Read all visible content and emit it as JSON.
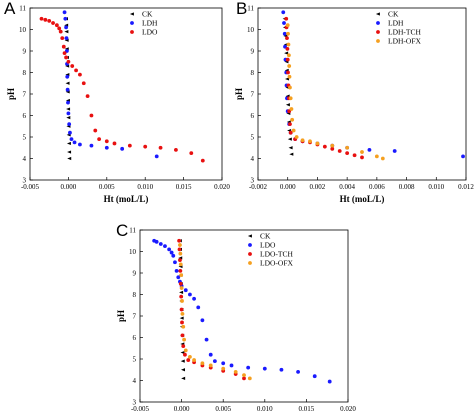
{
  "chart_data": [
    {
      "type": "scatter",
      "panel_label": "A",
      "xlabel": "Ht (moL/L)",
      "ylabel": "pH",
      "xlim": [
        -0.005,
        0.02
      ],
      "ylim": [
        3,
        11
      ],
      "xticks": [
        "-0.005",
        "0.000",
        "0.005",
        "0.010",
        "0.015",
        "0.020"
      ],
      "yticks": [
        "3",
        "4",
        "5",
        "6",
        "7",
        "8",
        "9",
        "10",
        "11"
      ],
      "legend_position": "top-right",
      "series": [
        {
          "name": "CK",
          "color": "#000000",
          "points": [
            [
              -0.0003,
              10.5
            ],
            [
              -0.00028,
              10.2
            ],
            [
              -0.00025,
              9.9
            ],
            [
              -0.00022,
              9.5
            ],
            [
              -0.0002,
              9.1
            ],
            [
              -0.00018,
              8.7
            ],
            [
              -0.00015,
              8.3
            ],
            [
              -0.00012,
              7.9
            ],
            [
              -0.0001,
              7.5
            ],
            [
              -8e-05,
              7.1
            ],
            [
              -5e-05,
              6.7
            ],
            [
              -3e-05,
              6.3
            ],
            [
              0.0,
              5.9
            ],
            [
              2e-05,
              5.5
            ],
            [
              5e-05,
              5.1
            ],
            [
              8e-05,
              4.7
            ],
            [
              0.0001,
              4.3
            ],
            [
              0.00012,
              4.0
            ]
          ]
        },
        {
          "name": "LDH",
          "color": "#1a1aff",
          "points": [
            [
              -0.0005,
              10.8
            ],
            [
              -0.0004,
              10.5
            ],
            [
              -0.0003,
              10.1
            ],
            [
              -0.00025,
              9.6
            ],
            [
              -0.0002,
              9.0
            ],
            [
              -0.00018,
              8.4
            ],
            [
              -0.00015,
              7.8
            ],
            [
              -0.0001,
              7.2
            ],
            [
              -5e-05,
              6.6
            ],
            [
              0.0,
              6.1
            ],
            [
              0.0001,
              5.6
            ],
            [
              0.0002,
              5.2
            ],
            [
              0.0004,
              4.9
            ],
            [
              0.0008,
              4.75
            ],
            [
              0.0015,
              4.65
            ],
            [
              0.003,
              4.6
            ],
            [
              0.005,
              4.5
            ],
            [
              0.007,
              4.45
            ],
            [
              0.0115,
              4.1
            ]
          ]
        },
        {
          "name": "LDO",
          "color": "#e81010",
          "points": [
            [
              -0.0035,
              10.5
            ],
            [
              -0.003,
              10.45
            ],
            [
              -0.0025,
              10.4
            ],
            [
              -0.002,
              10.3
            ],
            [
              -0.0015,
              10.2
            ],
            [
              -0.0012,
              10.05
            ],
            [
              -0.001,
              9.9
            ],
            [
              -0.0008,
              9.6
            ],
            [
              -0.0006,
              9.2
            ],
            [
              -0.0005,
              8.9
            ],
            [
              -0.0003,
              8.7
            ],
            [
              0.0,
              8.5
            ],
            [
              0.0005,
              8.3
            ],
            [
              0.001,
              8.1
            ],
            [
              0.0015,
              7.9
            ],
            [
              0.002,
              7.5
            ],
            [
              0.0025,
              6.9
            ],
            [
              0.003,
              6.0
            ],
            [
              0.0035,
              5.3
            ],
            [
              0.004,
              4.9
            ],
            [
              0.005,
              4.8
            ],
            [
              0.006,
              4.7
            ],
            [
              0.008,
              4.6
            ],
            [
              0.01,
              4.55
            ],
            [
              0.012,
              4.5
            ],
            [
              0.014,
              4.4
            ],
            [
              0.016,
              4.25
            ],
            [
              0.0175,
              3.9
            ]
          ]
        }
      ]
    },
    {
      "type": "scatter",
      "panel_label": "B",
      "xlabel": "Ht (moL/L)",
      "ylabel": "pH",
      "xlim": [
        -0.002,
        0.012
      ],
      "ylim": [
        3,
        11
      ],
      "xticks": [
        "-0.002",
        "0.000",
        "0.002",
        "0.004",
        "0.006",
        "0.008",
        "0.010",
        "0.012"
      ],
      "yticks": [
        "3",
        "4",
        "5",
        "6",
        "7",
        "8",
        "9",
        "10",
        "11"
      ],
      "legend_position": "top-right",
      "series": [
        {
          "name": "CK",
          "color": "#000000",
          "points": [
            [
              -0.0002,
              10.5
            ],
            [
              -0.00018,
              10.1
            ],
            [
              -0.00015,
              9.7
            ],
            [
              -0.00012,
              9.3
            ],
            [
              -0.0001,
              8.9
            ],
            [
              -8e-05,
              8.5
            ],
            [
              -6e-05,
              8.1
            ],
            [
              -4e-05,
              7.7
            ],
            [
              -2e-05,
              7.3
            ],
            [
              0.0,
              6.9
            ],
            [
              2e-05,
              6.5
            ],
            [
              5e-05,
              6.1
            ],
            [
              8e-05,
              5.7
            ],
            [
              0.0001,
              5.3
            ],
            [
              0.00015,
              4.9
            ],
            [
              0.0002,
              4.5
            ],
            [
              0.00025,
              4.2
            ]
          ]
        },
        {
          "name": "LDH",
          "color": "#1a1aff",
          "points": [
            [
              -0.0003,
              10.8
            ],
            [
              -0.00025,
              10.3
            ],
            [
              -0.0002,
              9.8
            ],
            [
              -0.00018,
              9.2
            ],
            [
              -0.00015,
              8.6
            ],
            [
              -0.0001,
              8.0
            ],
            [
              -8e-05,
              7.4
            ],
            [
              -5e-05,
              6.8
            ],
            [
              0.0,
              6.2
            ],
            [
              0.0001,
              5.6
            ],
            [
              0.0002,
              5.2
            ],
            [
              0.0005,
              4.9
            ],
            [
              0.001,
              4.8
            ],
            [
              0.002,
              4.7
            ],
            [
              0.003,
              4.6
            ],
            [
              0.004,
              4.5
            ],
            [
              0.0055,
              4.4
            ],
            [
              0.0072,
              4.35
            ],
            [
              0.0118,
              4.1
            ]
          ]
        },
        {
          "name": "LDH-TCH",
          "color": "#e81010",
          "points": [
            [
              -0.0001,
              10.5
            ],
            [
              -8e-05,
              10.1
            ],
            [
              -5e-05,
              9.6
            ],
            [
              -2e-05,
              9.1
            ],
            [
              0.0,
              8.6
            ],
            [
              2e-05,
              8.0
            ],
            [
              5e-05,
              7.4
            ],
            [
              8e-05,
              6.8
            ],
            [
              0.0001,
              6.2
            ],
            [
              0.00015,
              5.6
            ],
            [
              0.0002,
              5.2
            ],
            [
              0.0005,
              4.9
            ],
            [
              0.001,
              4.8
            ],
            [
              0.0015,
              4.75
            ],
            [
              0.002,
              4.65
            ],
            [
              0.0025,
              4.55
            ],
            [
              0.003,
              4.45
            ],
            [
              0.0035,
              4.35
            ],
            [
              0.004,
              4.25
            ],
            [
              0.0045,
              4.15
            ],
            [
              0.005,
              4.05
            ]
          ]
        },
        {
          "name": "LDH-OFX",
          "color": "#f5a020",
          "points": [
            [
              0.0,
              10.2
            ],
            [
              2e-05,
              9.8
            ],
            [
              5e-05,
              9.3
            ],
            [
              8e-05,
              8.8
            ],
            [
              0.0001,
              8.3
            ],
            [
              0.00012,
              7.8
            ],
            [
              0.00015,
              7.3
            ],
            [
              0.0002,
              6.8
            ],
            [
              0.00025,
              6.3
            ],
            [
              0.0003,
              5.8
            ],
            [
              0.0004,
              5.3
            ],
            [
              0.0006,
              5.0
            ],
            [
              0.001,
              4.85
            ],
            [
              0.0015,
              4.8
            ],
            [
              0.002,
              4.7
            ],
            [
              0.003,
              4.6
            ],
            [
              0.004,
              4.5
            ],
            [
              0.005,
              4.3
            ],
            [
              0.006,
              4.1
            ],
            [
              0.0064,
              4.0
            ]
          ]
        }
      ]
    },
    {
      "type": "scatter",
      "panel_label": "C",
      "xlabel": "Ht (moL/L)",
      "ylabel": "pH",
      "xlim": [
        -0.005,
        0.02
      ],
      "ylim": [
        3,
        11
      ],
      "xticks": [
        "-0.005",
        "0.000",
        "0.005",
        "0.010",
        "0.015",
        "0.020"
      ],
      "yticks": [
        "3",
        "4",
        "5",
        "6",
        "7",
        "8",
        "9",
        "10",
        "11"
      ],
      "legend_position": "top-right",
      "series": [
        {
          "name": "CK",
          "color": "#000000",
          "points": [
            [
              -0.0002,
              10.5
            ],
            [
              -0.00018,
              10.1
            ],
            [
              -0.00015,
              9.7
            ],
            [
              -0.00012,
              9.3
            ],
            [
              -0.0001,
              8.9
            ],
            [
              -8e-05,
              8.5
            ],
            [
              -5e-05,
              8.1
            ],
            [
              -2e-05,
              7.7
            ],
            [
              0.0,
              7.3
            ],
            [
              2e-05,
              6.9
            ],
            [
              5e-05,
              6.5
            ],
            [
              8e-05,
              6.1
            ],
            [
              0.0001,
              5.7
            ],
            [
              0.00012,
              5.3
            ],
            [
              0.00015,
              4.9
            ],
            [
              0.00018,
              4.5
            ],
            [
              0.0002,
              4.1
            ]
          ]
        },
        {
          "name": "LDO",
          "color": "#1a1aff",
          "points": [
            [
              -0.0033,
              10.5
            ],
            [
              -0.003,
              10.45
            ],
            [
              -0.0025,
              10.35
            ],
            [
              -0.002,
              10.25
            ],
            [
              -0.0015,
              10.1
            ],
            [
              -0.0012,
              9.95
            ],
            [
              -0.001,
              9.8
            ],
            [
              -0.0008,
              9.5
            ],
            [
              -0.0006,
              9.1
            ],
            [
              -0.0004,
              8.8
            ],
            [
              -0.0002,
              8.6
            ],
            [
              0.0,
              8.4
            ],
            [
              0.0005,
              8.2
            ],
            [
              0.001,
              8.0
            ],
            [
              0.0015,
              7.8
            ],
            [
              0.002,
              7.4
            ],
            [
              0.0025,
              6.8
            ],
            [
              0.003,
              5.9
            ],
            [
              0.0035,
              5.2
            ],
            [
              0.004,
              4.9
            ],
            [
              0.005,
              4.8
            ],
            [
              0.006,
              4.7
            ],
            [
              0.008,
              4.6
            ],
            [
              0.01,
              4.55
            ],
            [
              0.012,
              4.5
            ],
            [
              0.014,
              4.4
            ],
            [
              0.016,
              4.2
            ],
            [
              0.0178,
              3.95
            ]
          ]
        },
        {
          "name": "LDO-TCH",
          "color": "#e81010",
          "points": [
            [
              -0.0003,
              10.5
            ],
            [
              -0.00025,
              10.1
            ],
            [
              -0.0002,
              9.6
            ],
            [
              -0.00015,
              9.1
            ],
            [
              -0.0001,
              8.5
            ],
            [
              -5e-05,
              7.9
            ],
            [
              0.0,
              7.3
            ],
            [
              5e-05,
              6.7
            ],
            [
              0.0001,
              6.1
            ],
            [
              0.0002,
              5.6
            ],
            [
              0.0004,
              5.2
            ],
            [
              0.0008,
              4.95
            ],
            [
              0.0015,
              4.85
            ],
            [
              0.0025,
              4.7
            ],
            [
              0.0035,
              4.6
            ],
            [
              0.005,
              4.45
            ],
            [
              0.0065,
              4.3
            ],
            [
              0.0075,
              4.1
            ]
          ]
        },
        {
          "name": "LDO-OFX",
          "color": "#f5a020",
          "points": [
            [
              -0.0002,
              10.3
            ],
            [
              -0.00015,
              9.9
            ],
            [
              -0.0001,
              9.4
            ],
            [
              -5e-05,
              8.9
            ],
            [
              0.0,
              8.3
            ],
            [
              5e-05,
              7.7
            ],
            [
              0.0001,
              7.1
            ],
            [
              0.0002,
              6.5
            ],
            [
              0.0003,
              5.9
            ],
            [
              0.0005,
              5.4
            ],
            [
              0.001,
              5.1
            ],
            [
              0.0015,
              4.95
            ],
            [
              0.0025,
              4.8
            ],
            [
              0.0035,
              4.7
            ],
            [
              0.005,
              4.55
            ],
            [
              0.0065,
              4.4
            ],
            [
              0.0075,
              4.25
            ],
            [
              0.0082,
              4.1
            ]
          ]
        }
      ]
    }
  ]
}
